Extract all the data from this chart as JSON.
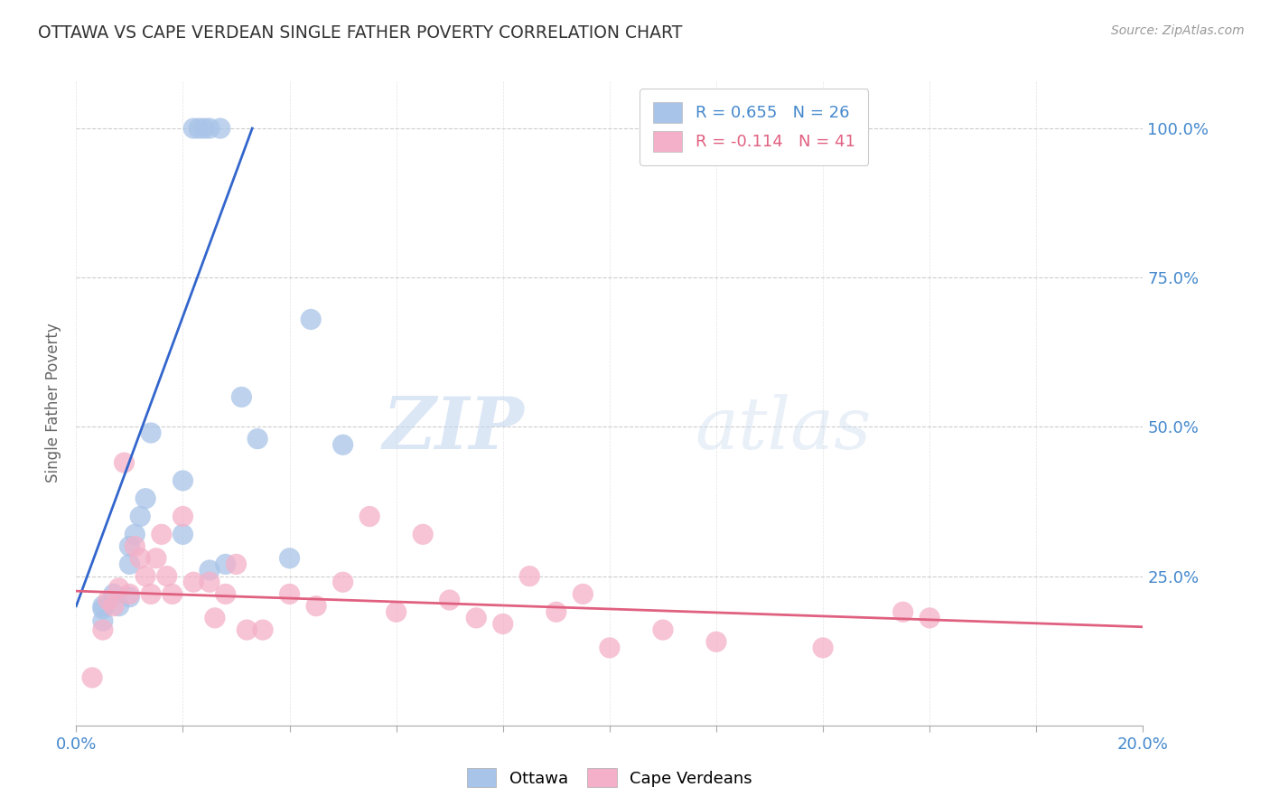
{
  "title": "OTTAWA VS CAPE VERDEAN SINGLE FATHER POVERTY CORRELATION CHART",
  "source": "Source: ZipAtlas.com",
  "ylabel": "Single Father Poverty",
  "ytick_labels": [
    "100.0%",
    "75.0%",
    "50.0%",
    "25.0%"
  ],
  "ytick_values": [
    1.0,
    0.75,
    0.5,
    0.25
  ],
  "watermark_zip": "ZIP",
  "watermark_atlas": "atlas",
  "legend_ottawa": "R = 0.655   N = 26",
  "legend_cape": "R = -0.114   N = 41",
  "ottawa_color": "#a8c4e8",
  "cape_color": "#f4b0c8",
  "ottawa_line_color": "#3366cc",
  "cape_line_color": "#e06080",
  "ottawa_points_x": [
    0.005,
    0.005,
    0.005,
    0.007,
    0.008,
    0.01,
    0.01,
    0.01,
    0.011,
    0.012,
    0.013,
    0.014,
    0.02,
    0.022,
    0.023,
    0.024,
    0.025,
    0.027,
    0.031,
    0.034,
    0.04,
    0.044,
    0.05,
    0.02,
    0.025,
    0.028
  ],
  "ottawa_points_y": [
    0.175,
    0.195,
    0.2,
    0.22,
    0.2,
    0.215,
    0.3,
    0.27,
    0.32,
    0.35,
    0.38,
    0.49,
    0.41,
    1.0,
    1.0,
    1.0,
    1.0,
    1.0,
    0.55,
    0.48,
    0.28,
    0.68,
    0.47,
    0.32,
    0.26,
    0.27
  ],
  "cape_points_x": [
    0.003,
    0.005,
    0.006,
    0.007,
    0.008,
    0.009,
    0.01,
    0.011,
    0.012,
    0.013,
    0.014,
    0.015,
    0.016,
    0.017,
    0.018,
    0.02,
    0.022,
    0.025,
    0.026,
    0.028,
    0.03,
    0.032,
    0.035,
    0.04,
    0.045,
    0.05,
    0.055,
    0.06,
    0.065,
    0.07,
    0.075,
    0.08,
    0.085,
    0.09,
    0.095,
    0.1,
    0.11,
    0.12,
    0.14,
    0.155,
    0.16
  ],
  "cape_points_y": [
    0.08,
    0.16,
    0.21,
    0.2,
    0.23,
    0.44,
    0.22,
    0.3,
    0.28,
    0.25,
    0.22,
    0.28,
    0.32,
    0.25,
    0.22,
    0.35,
    0.24,
    0.24,
    0.18,
    0.22,
    0.27,
    0.16,
    0.16,
    0.22,
    0.2,
    0.24,
    0.35,
    0.19,
    0.32,
    0.21,
    0.18,
    0.17,
    0.25,
    0.19,
    0.22,
    0.13,
    0.16,
    0.14,
    0.13,
    0.19,
    0.18
  ],
  "ottawa_line_x": [
    0.0,
    0.033
  ],
  "ottawa_line_y": [
    0.2,
    1.0
  ],
  "cape_line_x": [
    0.0,
    0.2
  ],
  "cape_line_y": [
    0.225,
    0.165
  ],
  "xmin": 0.0,
  "xmax": 0.2,
  "ymin": 0.0,
  "ymax": 1.08,
  "background_color": "#ffffff",
  "grid_color": "#c8c8c8"
}
